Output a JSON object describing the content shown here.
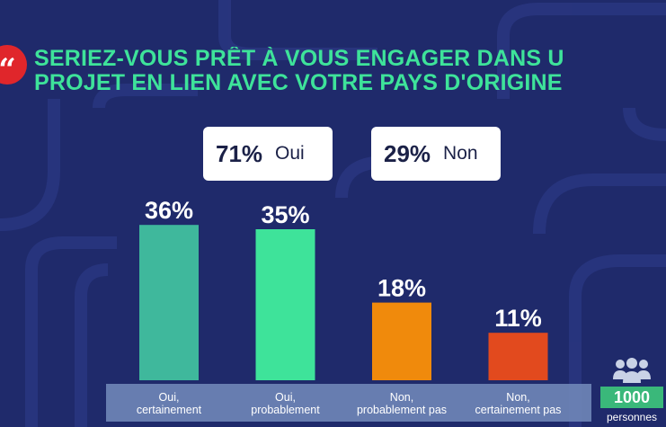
{
  "colors": {
    "background": "#1f2a6b",
    "title": "#3ee39a",
    "accent_red": "#e0262b",
    "footer_bar": "#6f86b8",
    "persons_badge": "#3ab87a"
  },
  "header": {
    "quote_icon": "quote-icon",
    "title_line1": "SERIEZ-VOUS PRÊT À VOUS ENGAGER DANS U",
    "title_line2": "PROJET EN LIEN AVEC VOTRE PAYS D'ORIGINE"
  },
  "summary": {
    "oui": {
      "pct": "71%",
      "label": "Oui"
    },
    "non": {
      "pct": "29%",
      "label": "Non"
    }
  },
  "sample": {
    "icon": "people-icon",
    "count": "1000",
    "label": "personnes"
  },
  "chart_data": {
    "type": "bar",
    "categories": [
      "Oui, certainement",
      "Oui, probablement",
      "Non, probablement pas",
      "Non, certainement pas"
    ],
    "category_lines": [
      [
        "Oui,",
        "certainement"
      ],
      [
        "Oui,",
        "probablement"
      ],
      [
        "Non,",
        "probablement pas"
      ],
      [
        "Non,",
        "certainement pas"
      ]
    ],
    "values": [
      36,
      35,
      18,
      11
    ],
    "value_labels": [
      "36%",
      "35%",
      "18%",
      "11%"
    ],
    "colors": [
      "#3fb89c",
      "#3ee39a",
      "#f08a0c",
      "#e24a1e"
    ],
    "title": "SERIEZ-VOUS PRÊT À VOUS ENGAGER DANS U PROJET EN LIEN AVEC VOTRE PAYS D'ORIGINE",
    "xlabel": "",
    "ylabel": "",
    "ylim": [
      0,
      40
    ],
    "grid": false
  }
}
